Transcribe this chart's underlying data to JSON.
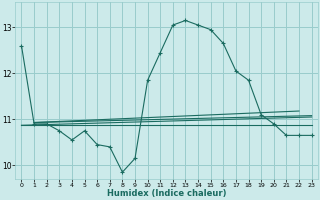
{
  "title": "",
  "xlabel": "Humidex (Indice chaleur)",
  "bg_color": "#cceaea",
  "grid_color": "#99cccc",
  "line_color": "#1a6b60",
  "xlim": [
    -0.5,
    23.5
  ],
  "ylim": [
    9.7,
    13.55
  ],
  "xticks": [
    0,
    1,
    2,
    3,
    4,
    5,
    6,
    7,
    8,
    9,
    10,
    11,
    12,
    13,
    14,
    15,
    16,
    17,
    18,
    19,
    20,
    21,
    22,
    23
  ],
  "yticks": [
    10,
    11,
    12,
    13
  ],
  "main_x": [
    0,
    1,
    2,
    3,
    4,
    5,
    6,
    7,
    8,
    9,
    10,
    11,
    12,
    13,
    14,
    15,
    16,
    17,
    18,
    19,
    20,
    21,
    22,
    23
  ],
  "main_y": [
    12.6,
    10.9,
    10.9,
    10.75,
    10.55,
    10.75,
    10.45,
    10.4,
    9.85,
    10.15,
    11.85,
    12.45,
    13.05,
    13.15,
    13.05,
    12.95,
    12.65,
    12.05,
    11.85,
    11.1,
    10.9,
    10.65,
    10.65,
    10.65
  ],
  "line2_x": [
    0,
    23
  ],
  "line2_y": [
    10.87,
    10.87
  ],
  "line3_x": [
    0,
    23
  ],
  "line3_y": [
    10.87,
    11.05
  ],
  "line4_x": [
    1,
    23
  ],
  "line4_y": [
    10.93,
    11.08
  ],
  "line5_x": [
    1,
    22
  ],
  "line5_y": [
    10.93,
    11.18
  ]
}
